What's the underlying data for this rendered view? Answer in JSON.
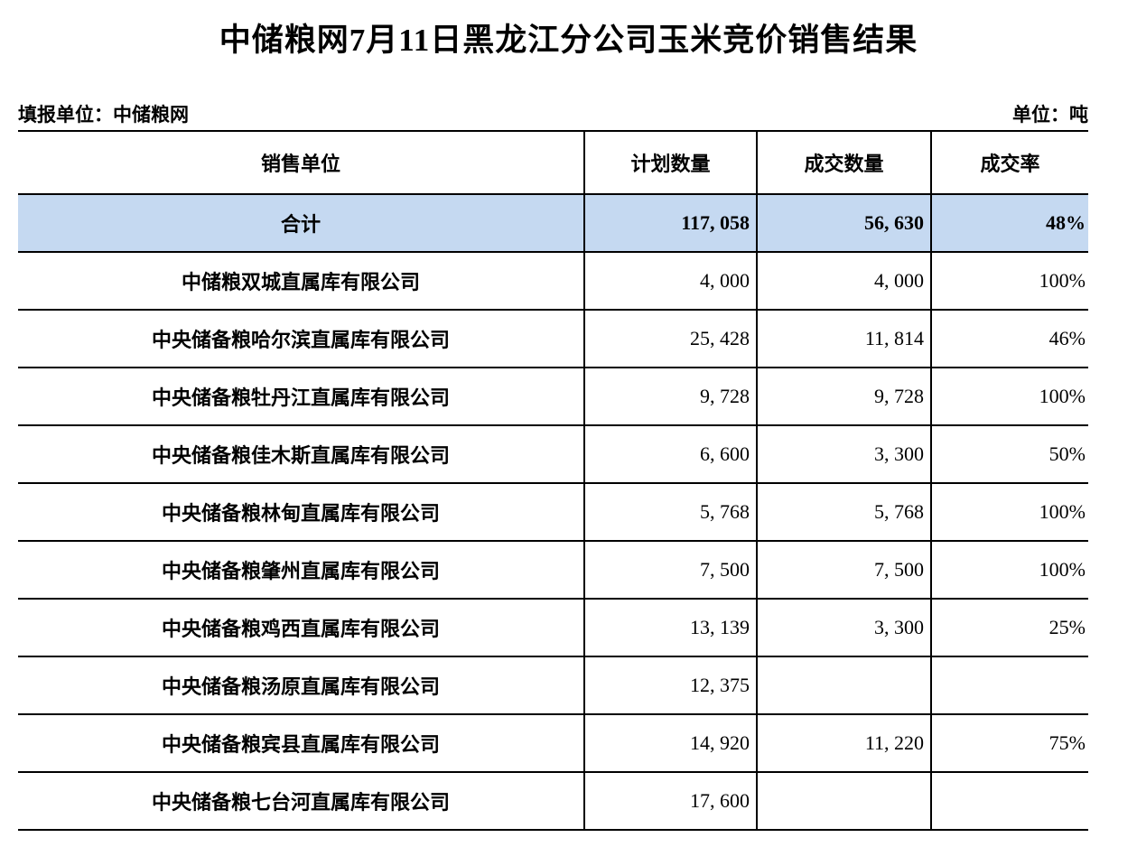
{
  "page": {
    "title": "中储粮网7月11日黑龙江分公司玉米竞价销售结果",
    "report_unit_label": "填报单位：中储粮网",
    "unit_label": "单位：吨"
  },
  "table": {
    "columns": [
      "销售单位",
      "计划数量",
      "成交数量",
      "成交率"
    ],
    "total_row": {
      "name": "合计",
      "planned": "117, 058",
      "traded": "56, 630",
      "rate": "48%"
    },
    "rows": [
      {
        "name": "中储粮双城直属库有限公司",
        "planned": "4, 000",
        "traded": "4, 000",
        "rate": "100%"
      },
      {
        "name": "中央储备粮哈尔滨直属库有限公司",
        "planned": "25, 428",
        "traded": "11, 814",
        "rate": "46%"
      },
      {
        "name": "中央储备粮牡丹江直属库有限公司",
        "planned": "9, 728",
        "traded": "9, 728",
        "rate": "100%"
      },
      {
        "name": "中央储备粮佳木斯直属库有限公司",
        "planned": "6, 600",
        "traded": "3, 300",
        "rate": "50%"
      },
      {
        "name": "中央储备粮林甸直属库有限公司",
        "planned": "5, 768",
        "traded": "5, 768",
        "rate": "100%"
      },
      {
        "name": "中央储备粮肇州直属库有限公司",
        "planned": "7, 500",
        "traded": "7, 500",
        "rate": "100%"
      },
      {
        "name": "中央储备粮鸡西直属库有限公司",
        "planned": "13, 139",
        "traded": "3, 300",
        "rate": "25%"
      },
      {
        "name": "中央储备粮汤原直属库有限公司",
        "planned": "12, 375",
        "traded": "",
        "rate": ""
      },
      {
        "name": "中央储备粮宾县直属库有限公司",
        "planned": "14, 920",
        "traded": "11, 220",
        "rate": "75%"
      },
      {
        "name": "中央储备粮七台河直属库有限公司",
        "planned": "17, 600",
        "traded": "",
        "rate": ""
      }
    ],
    "colors": {
      "total_row_bg": "#c5d9f1",
      "border": "#000000",
      "bottom_bar_bg": "#f4f4f4"
    }
  }
}
